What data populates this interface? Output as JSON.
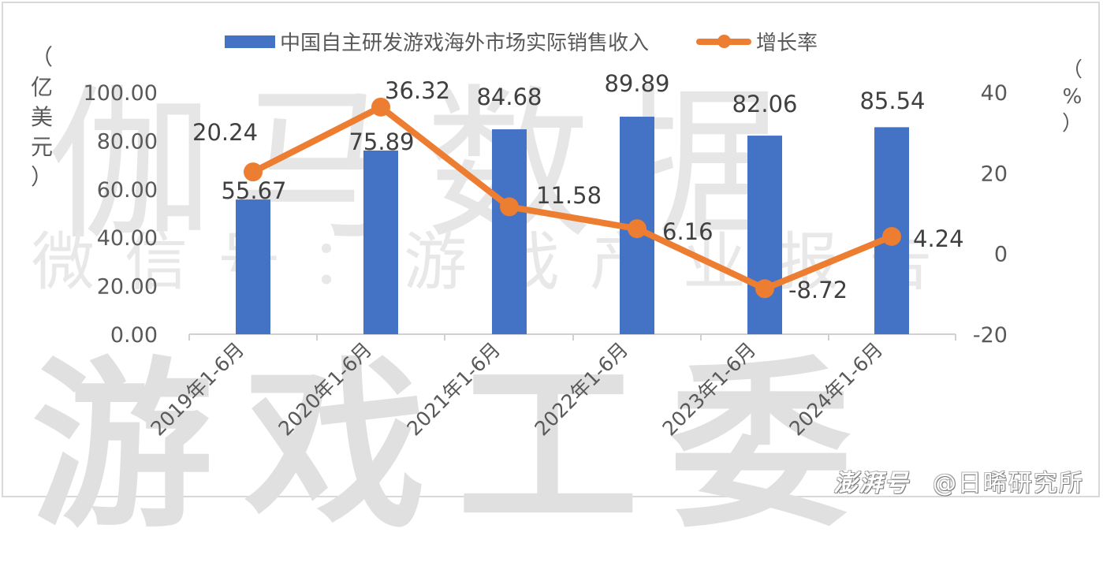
{
  "legend": {
    "bar_label": "中国自主研发游戏海外市场实际销售收入",
    "line_label": "增长率"
  },
  "axes": {
    "left_unit": [
      "（",
      "亿",
      "美",
      "元",
      "）"
    ],
    "right_unit": [
      "（",
      "%",
      "）"
    ],
    "left_ticks": [
      "100.00",
      "80.00",
      "60.00",
      "40.00",
      "20.00",
      "0.00"
    ],
    "right_ticks": [
      "40",
      "20",
      "0",
      "-20"
    ]
  },
  "watermarks": {
    "top": "伽马数据",
    "middle": "微信号：游戏产业报告",
    "bottom": "游戏工委"
  },
  "footer": {
    "brand": "澎湃号",
    "account": "@日晞研究所"
  },
  "colors": {
    "bar": "#4472c4",
    "line": "#ed7d31",
    "text": "#595959"
  },
  "chart_data": {
    "type": "bar+line",
    "title": "",
    "categories": [
      "2019年1-6月",
      "2020年1-6月",
      "2021年1-6月",
      "2022年1-6月",
      "2023年1-6月",
      "2024年1-6月"
    ],
    "series": [
      {
        "name": "中国自主研发游戏海外市场实际销售收入",
        "type": "bar",
        "axis": "left",
        "values": [
          55.67,
          75.89,
          84.68,
          89.89,
          82.06,
          85.54
        ],
        "labels": [
          "55.67",
          "75.89",
          "84.68",
          "89.89",
          "82.06",
          "85.54"
        ]
      },
      {
        "name": "增长率",
        "type": "line",
        "axis": "right",
        "values": [
          20.24,
          36.32,
          11.58,
          6.16,
          -8.72,
          4.24
        ],
        "labels": [
          "20.24",
          "36.32",
          "11.58",
          "6.16",
          "-8.72",
          "4.24"
        ]
      }
    ],
    "ylabel": "亿美元",
    "y2label": "%",
    "ylim": [
      0,
      100
    ],
    "y2lim": [
      -20,
      40
    ],
    "legend_position": "top",
    "grid": false
  }
}
